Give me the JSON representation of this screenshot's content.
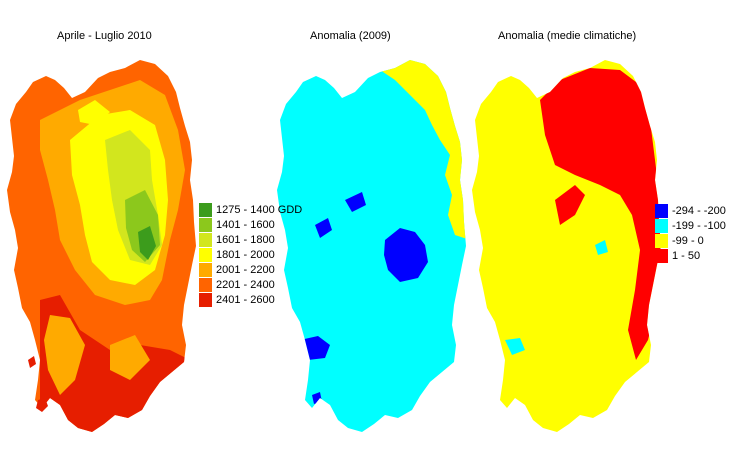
{
  "maps": [
    {
      "title": "Aprile - Luglio 2010"
    },
    {
      "title": "Anomalia (2009)"
    },
    {
      "title": "Anomalia (medie climatiche)"
    }
  ],
  "legend_gdd": {
    "items": [
      {
        "label": "1275 - 1400 GDD",
        "color": "#3c9c1c"
      },
      {
        "label": "1401 - 1600",
        "color": "#8cc81c"
      },
      {
        "label": "1601 - 1800",
        "color": "#d2e61e"
      },
      {
        "label": "1801 - 2000",
        "color": "#ffff00"
      },
      {
        "label": "2001 - 2200",
        "color": "#ffaa00"
      },
      {
        "label": "2201 - 2400",
        "color": "#ff6400"
      },
      {
        "label": "2401 - 2600",
        "color": "#e61e00"
      }
    ]
  },
  "legend_anomaly": {
    "items": [
      {
        "label": "-294 - -200",
        "color": "#0000ff"
      },
      {
        "label": "-199 - -100",
        "color": "#00ffff"
      },
      {
        "label": "-99 - 0",
        "color": "#ffff00"
      },
      {
        "label": "1 - 50",
        "color": "#ff0000"
      }
    ]
  }
}
